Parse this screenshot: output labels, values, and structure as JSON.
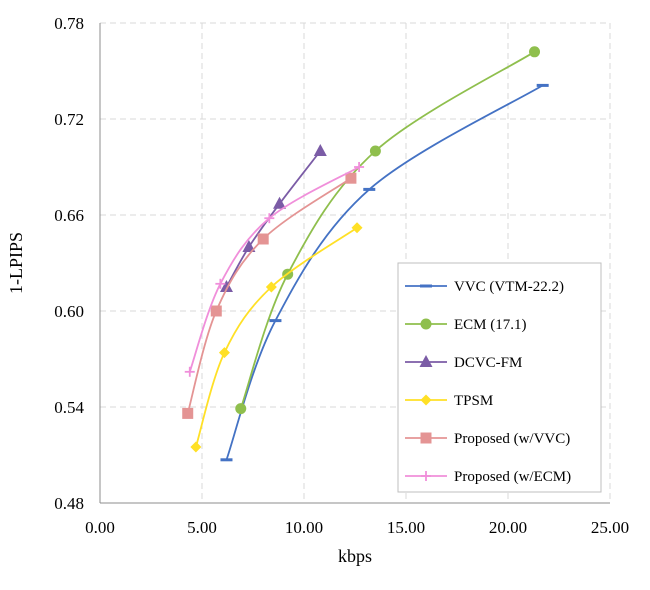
{
  "chart_data": {
    "type": "line",
    "title": "",
    "xlabel": "kbps",
    "ylabel": "1-LPIPS",
    "xlim": [
      0,
      25
    ],
    "ylim": [
      0.48,
      0.78
    ],
    "xticks": [
      0,
      5,
      10,
      15,
      20,
      25
    ],
    "yticks": [
      0.48,
      0.54,
      0.6,
      0.66,
      0.72,
      0.78
    ],
    "xtick_labels": [
      "0.00",
      "5.00",
      "10.00",
      "15.00",
      "20.00",
      "25.00"
    ],
    "ytick_labels": [
      "0.48",
      "0.54",
      "0.60",
      "0.66",
      "0.72",
      "0.78"
    ],
    "grid": true,
    "legend_position": "bottom-right",
    "series": [
      {
        "name": "VVC (VTM-22.2)",
        "color": "#4472C4",
        "marker": "dash",
        "x": [
          6.2,
          8.6,
          13.2,
          21.7
        ],
        "y": [
          0.507,
          0.594,
          0.676,
          0.741
        ]
      },
      {
        "name": "ECM (17.1)",
        "color": "#8FBF4D",
        "marker": "circle",
        "x": [
          6.9,
          9.2,
          13.5,
          21.3
        ],
        "y": [
          0.539,
          0.623,
          0.7,
          0.762
        ]
      },
      {
        "name": "DCVC-FM",
        "color": "#7B5CA6",
        "marker": "triangle",
        "x": [
          6.2,
          7.3,
          8.8,
          10.8
        ],
        "y": [
          0.615,
          0.64,
          0.667,
          0.7
        ]
      },
      {
        "name": "TPSM",
        "color": "#FFE026",
        "marker": "diamond",
        "x": [
          4.7,
          6.1,
          8.4,
          12.6
        ],
        "y": [
          0.515,
          0.574,
          0.615,
          0.652
        ]
      },
      {
        "name": "Proposed (w/VVC)",
        "color": "#E49494",
        "marker": "square",
        "x": [
          4.3,
          5.7,
          8.0,
          12.3
        ],
        "y": [
          0.536,
          0.6,
          0.645,
          0.683
        ]
      },
      {
        "name": "Proposed (w/ECM)",
        "color": "#F08FDA",
        "marker": "plus",
        "x": [
          4.4,
          5.9,
          8.3,
          12.7
        ],
        "y": [
          0.562,
          0.617,
          0.658,
          0.69
        ]
      }
    ]
  }
}
